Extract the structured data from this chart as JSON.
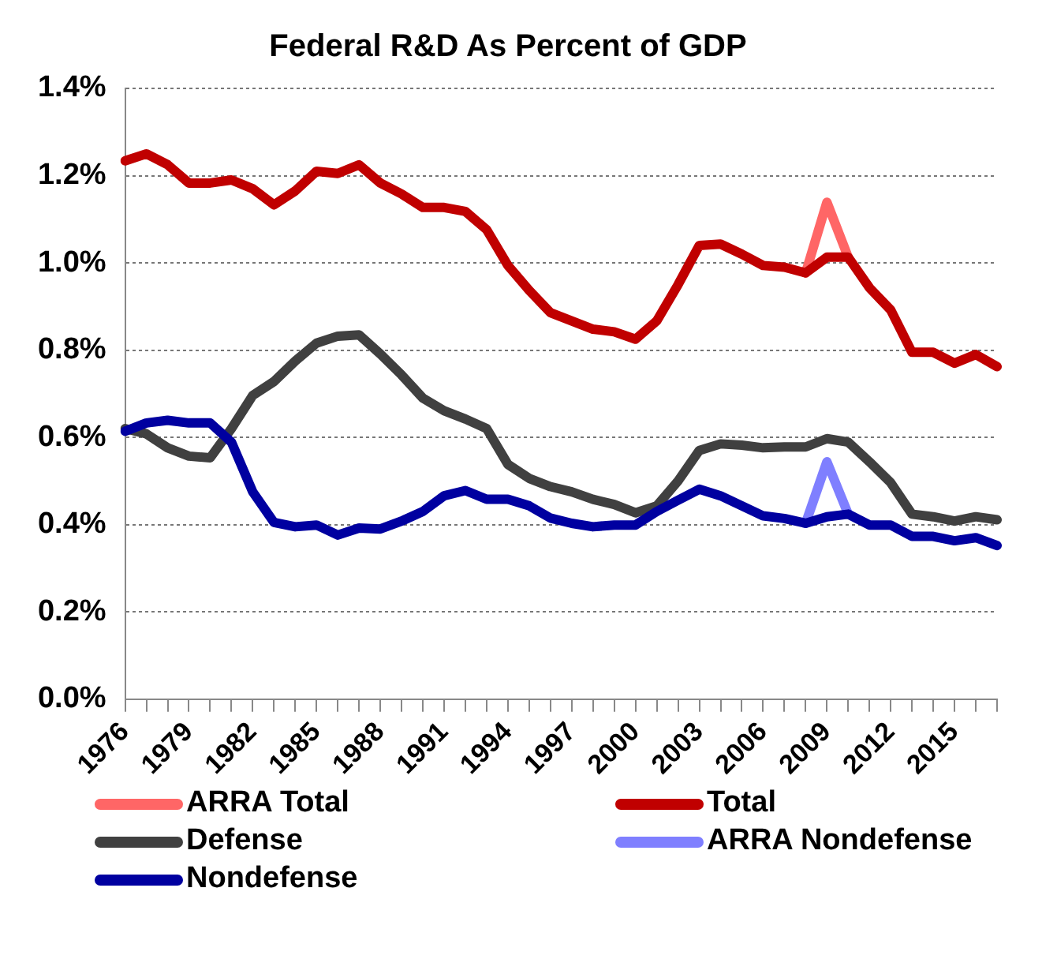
{
  "chart_data": {
    "type": "line",
    "title": "Federal R&D As Percent of GDP",
    "categories": [
      "1976",
      null,
      null,
      "1979",
      null,
      null,
      "1982",
      null,
      null,
      "1985",
      null,
      null,
      "1988",
      null,
      null,
      "1991",
      null,
      null,
      "1994",
      null,
      null,
      "1997",
      null,
      null,
      "2000",
      null,
      null,
      "2003",
      null,
      null,
      "2006",
      null,
      null,
      "2009",
      null,
      null,
      "2012",
      null,
      null,
      "2015",
      null,
      null
    ],
    "series": [
      {
        "name": "ARRA Total",
        "color": "#ff6666",
        "values": [
          null,
          null,
          null,
          null,
          null,
          null,
          null,
          null,
          null,
          null,
          null,
          null,
          null,
          null,
          null,
          null,
          null,
          null,
          null,
          null,
          null,
          null,
          null,
          null,
          null,
          null,
          null,
          null,
          null,
          null,
          null,
          null,
          0.977,
          1.139,
          1.013,
          null,
          null,
          null,
          null,
          null,
          null,
          null
        ]
      },
      {
        "name": "Total",
        "color": "#c00000",
        "values": [
          1.234,
          1.25,
          1.225,
          1.183,
          1.183,
          1.19,
          1.17,
          1.133,
          1.165,
          1.21,
          1.205,
          1.225,
          1.183,
          1.158,
          1.127,
          1.127,
          1.118,
          1.076,
          0.994,
          0.937,
          0.886,
          0.867,
          0.848,
          0.842,
          0.825,
          0.867,
          0.95,
          1.04,
          1.043,
          1.02,
          0.994,
          0.99,
          0.977,
          1.013,
          1.013,
          0.943,
          0.892,
          0.795,
          0.795,
          0.77,
          0.79,
          0.762
        ]
      },
      {
        "name": "Defense",
        "color": "#404040",
        "values": [
          0.62,
          0.608,
          0.576,
          0.557,
          0.553,
          0.62,
          0.696,
          0.728,
          0.775,
          0.816,
          0.832,
          0.835,
          0.791,
          0.743,
          0.69,
          0.661,
          0.642,
          0.62,
          0.538,
          0.506,
          0.487,
          0.475,
          0.458,
          0.446,
          0.427,
          0.443,
          0.5,
          0.57,
          0.585,
          0.582,
          0.576,
          0.578,
          0.578,
          0.597,
          0.589,
          0.544,
          0.496,
          0.424,
          0.418,
          0.408,
          0.418,
          0.411
        ]
      },
      {
        "name": "ARRA Nondefense",
        "color": "#7f7fff",
        "values": [
          null,
          null,
          null,
          null,
          null,
          null,
          null,
          null,
          null,
          null,
          null,
          null,
          null,
          null,
          null,
          null,
          null,
          null,
          null,
          null,
          null,
          null,
          null,
          null,
          null,
          null,
          null,
          null,
          null,
          null,
          null,
          null,
          0.403,
          0.544,
          0.424,
          null,
          null,
          null,
          null,
          null,
          null,
          null
        ]
      },
      {
        "name": "Nondefense",
        "color": "#0000a0",
        "values": [
          0.614,
          0.633,
          0.639,
          0.633,
          0.633,
          0.589,
          0.475,
          0.405,
          0.395,
          0.399,
          0.376,
          0.392,
          0.39,
          0.408,
          0.43,
          0.466,
          0.478,
          0.458,
          0.458,
          0.443,
          0.415,
          0.403,
          0.395,
          0.399,
          0.399,
          0.43,
          0.456,
          0.481,
          0.466,
          0.443,
          0.42,
          0.414,
          0.403,
          0.418,
          0.424,
          0.399,
          0.399,
          0.373,
          0.373,
          0.363,
          0.37,
          0.352
        ]
      }
    ],
    "ylim": [
      0,
      1.4
    ],
    "yticks": [
      {
        "value": 0,
        "label": "0.0%"
      },
      {
        "value": 0.2,
        "label": "0.2%"
      },
      {
        "value": 0.4,
        "label": "0.4%"
      },
      {
        "value": 0.6,
        "label": "0.6%"
      },
      {
        "value": 0.8,
        "label": "0.8%"
      },
      {
        "value": 1.0,
        "label": "1.0%"
      },
      {
        "value": 1.2,
        "label": "1.2%"
      },
      {
        "value": 1.4,
        "label": "1.4%"
      }
    ],
    "grid": "y",
    "legend": "bottom",
    "marker": "none",
    "line_style": "solid"
  }
}
